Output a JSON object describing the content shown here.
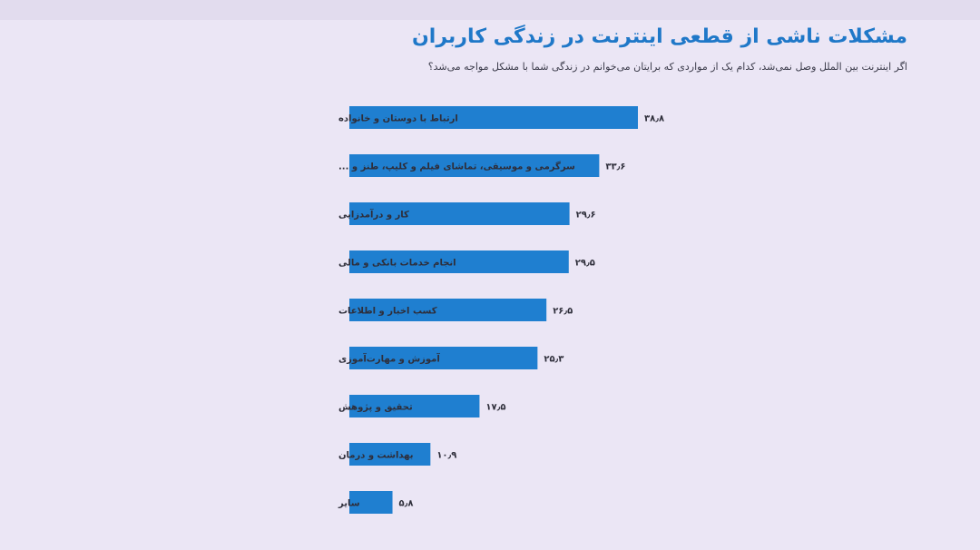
{
  "title": "مشکلات ناشی از قطعی اینترنت در زندگی کاربران",
  "subtitle": "اگر اینترنت بین الملل وصل نمی‌شد، کدام یک از مواردی که برایتان می‌خوانم در زندگی شما با مشکل مواجه می‌شد؟",
  "colors": {
    "background": "#ebe6f5",
    "bar": "#1f7fd0",
    "title": "#1f78c8",
    "text": "#2e2e3a"
  },
  "chart_data": {
    "type": "bar",
    "orientation": "horizontal",
    "categories": [
      "ارتباط با دوستان و خانواده",
      "سرگرمی و موسیقی، تماشای فیلم و کلیپ، طنز و ...",
      "کار و درآمدزایی",
      "انجام خدمات بانکی و مالی",
      "کسب اخبار و اطلاعات",
      "آموزش و مهارت‌آموزی",
      "تحقیق و پژوهش",
      "بهداشت و درمان",
      "سایر"
    ],
    "values": [
      38.8,
      33.6,
      29.6,
      29.5,
      26.5,
      25.3,
      17.5,
      10.9,
      5.8
    ],
    "value_labels": [
      "۳۸٫۸",
      "۳۳٫۶",
      "۲۹٫۶",
      "۲۹٫۵",
      "۲۶٫۵",
      "۲۵٫۳",
      "۱۷٫۵",
      "۱۰٫۹",
      "۵٫۸"
    ],
    "xlabel": "",
    "ylabel": "",
    "xlim": [
      0,
      40
    ],
    "grid": false,
    "legend": "none"
  }
}
